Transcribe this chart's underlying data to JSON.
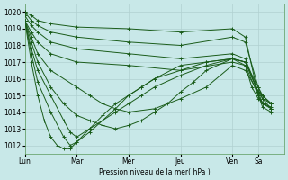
{
  "background_color": "#c8e8e8",
  "grid_color": "#b0d0d0",
  "line_color": "#1a5c1a",
  "xlabel": "Pression niveau de la mer( hPa )",
  "ylim": [
    1011.5,
    1020.5
  ],
  "yticks": [
    1012,
    1013,
    1014,
    1015,
    1016,
    1017,
    1018,
    1019,
    1020
  ],
  "xlim": [
    0,
    240
  ],
  "day_labels": [
    "Lun",
    "Mar",
    "Mer",
    "Jeu",
    "Ven",
    "Sa"
  ],
  "day_positions": [
    0,
    48,
    96,
    144,
    192,
    216
  ],
  "series": [
    {
      "x": [
        0,
        6,
        12,
        24,
        48,
        96,
        144,
        192,
        204,
        216,
        220,
        228
      ],
      "y": [
        1020.0,
        1019.8,
        1019.5,
        1019.3,
        1019.1,
        1019.0,
        1018.8,
        1019.0,
        1018.5,
        1015.0,
        1014.5,
        1014.2
      ]
    },
    {
      "x": [
        0,
        6,
        12,
        24,
        48,
        96,
        144,
        192,
        204,
        216,
        220,
        228
      ],
      "y": [
        1020.0,
        1019.5,
        1019.2,
        1018.8,
        1018.5,
        1018.2,
        1018.0,
        1018.5,
        1018.2,
        1015.5,
        1014.8,
        1014.5
      ]
    },
    {
      "x": [
        0,
        6,
        12,
        24,
        48,
        96,
        144,
        192,
        204,
        216,
        220,
        228
      ],
      "y": [
        1019.8,
        1019.2,
        1018.8,
        1018.2,
        1017.8,
        1017.5,
        1017.2,
        1017.5,
        1017.2,
        1015.2,
        1014.5,
        1014.3
      ]
    },
    {
      "x": [
        0,
        6,
        12,
        24,
        48,
        96,
        144,
        192,
        204,
        216,
        220,
        228
      ],
      "y": [
        1019.5,
        1018.8,
        1018.2,
        1017.5,
        1017.0,
        1016.8,
        1016.5,
        1017.0,
        1016.8,
        1015.0,
        1014.3,
        1014.0
      ]
    },
    {
      "x": [
        0,
        6,
        12,
        24,
        48,
        60,
        72,
        84,
        96,
        120,
        144,
        168,
        192,
        204,
        216,
        220,
        228
      ],
      "y": [
        1019.5,
        1018.5,
        1017.5,
        1016.5,
        1015.5,
        1015.0,
        1014.5,
        1014.2,
        1014.0,
        1014.2,
        1014.8,
        1015.5,
        1016.8,
        1016.5,
        1015.2,
        1014.8,
        1014.2
      ]
    },
    {
      "x": [
        0,
        6,
        12,
        24,
        36,
        48,
        60,
        72,
        84,
        96,
        108,
        120,
        132,
        144,
        156,
        168,
        192,
        204,
        216,
        220,
        228
      ],
      "y": [
        1019.5,
        1018.2,
        1017.0,
        1015.5,
        1014.5,
        1013.8,
        1013.5,
        1013.2,
        1013.0,
        1013.2,
        1013.5,
        1014.0,
        1014.5,
        1015.2,
        1015.8,
        1016.5,
        1017.2,
        1017.0,
        1015.5,
        1015.0,
        1014.5
      ]
    },
    {
      "x": [
        0,
        6,
        12,
        24,
        36,
        42,
        48,
        60,
        72,
        84,
        96,
        108,
        120,
        144,
        168,
        192,
        204,
        216,
        228
      ],
      "y": [
        1019.5,
        1017.8,
        1016.5,
        1015.0,
        1013.5,
        1012.8,
        1012.5,
        1013.0,
        1013.5,
        1014.0,
        1014.5,
        1015.0,
        1015.5,
        1016.2,
        1016.8,
        1017.2,
        1017.0,
        1015.2,
        1014.5
      ]
    },
    {
      "x": [
        0,
        6,
        12,
        24,
        36,
        42,
        48,
        60,
        72,
        84,
        96,
        108,
        120,
        144,
        168,
        192,
        204,
        216,
        228
      ],
      "y": [
        1019.5,
        1017.5,
        1015.8,
        1014.0,
        1012.5,
        1012.0,
        1012.2,
        1012.8,
        1013.5,
        1014.2,
        1015.0,
        1015.5,
        1016.0,
        1016.8,
        1017.0,
        1017.2,
        1017.0,
        1015.2,
        1014.5
      ]
    },
    {
      "x": [
        0,
        6,
        12,
        18,
        24,
        30,
        36,
        42,
        48,
        60,
        72,
        84,
        96,
        108,
        120,
        144,
        168,
        192,
        204,
        210,
        216,
        222,
        228
      ],
      "y": [
        1019.5,
        1017.0,
        1015.0,
        1013.5,
        1012.5,
        1012.0,
        1011.8,
        1011.8,
        1012.2,
        1013.0,
        1013.8,
        1014.5,
        1015.0,
        1015.5,
        1016.0,
        1016.5,
        1017.0,
        1017.2,
        1016.8,
        1015.5,
        1014.8,
        1014.5,
        1014.2
      ]
    }
  ]
}
